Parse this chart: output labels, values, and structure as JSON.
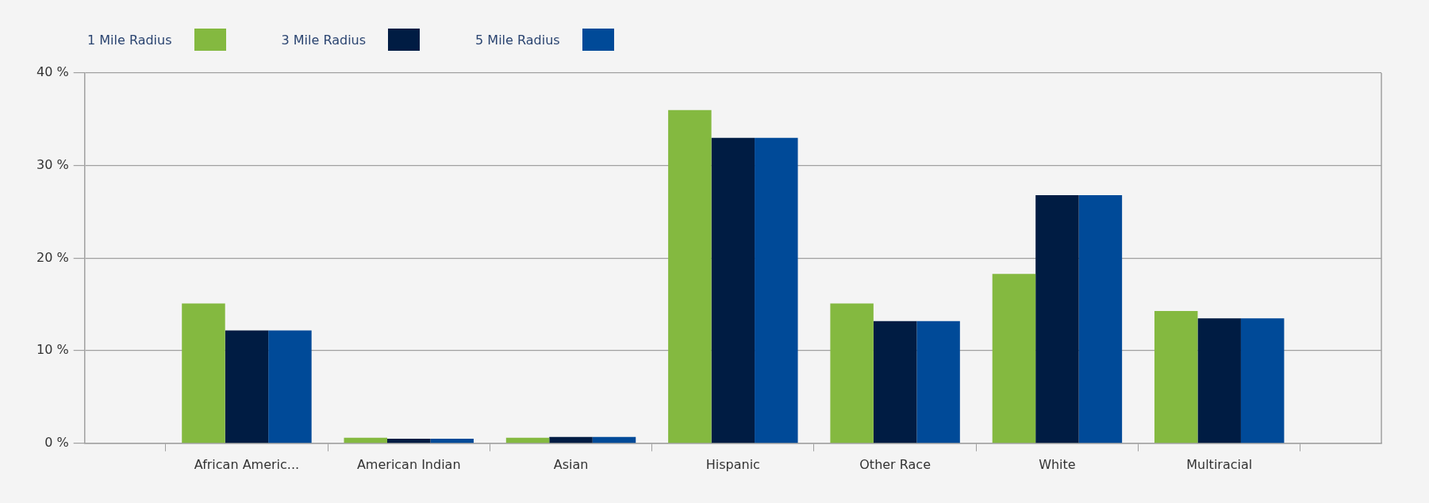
{
  "chart_data": {
    "type": "bar",
    "categories": [
      "African Americ...",
      "American Indian",
      "Asian",
      "Hispanic",
      "Other Race",
      "White",
      "Multiracial"
    ],
    "series": [
      {
        "name": "1 Mile Radius",
        "color": "#84b940",
        "values": [
          15.1,
          0.6,
          0.6,
          36.0,
          15.1,
          18.3,
          14.3
        ]
      },
      {
        "name": "3 Mile Radius",
        "color": "#001c43",
        "values": [
          12.2,
          0.5,
          0.7,
          33.0,
          13.2,
          26.8,
          13.5
        ]
      },
      {
        "name": "5 Mile Radius",
        "color": "#004a98",
        "values": [
          12.2,
          0.5,
          0.7,
          33.0,
          13.2,
          26.8,
          13.5
        ]
      }
    ],
    "ylim": [
      0,
      40
    ],
    "yticks": [
      {
        "value": 0,
        "label": "0 %"
      },
      {
        "value": 10,
        "label": "10 %"
      },
      {
        "value": 20,
        "label": "20 %"
      },
      {
        "value": 30,
        "label": "30 %"
      },
      {
        "value": 40,
        "label": "40 %"
      }
    ],
    "grid": "y",
    "legend": "top left"
  }
}
